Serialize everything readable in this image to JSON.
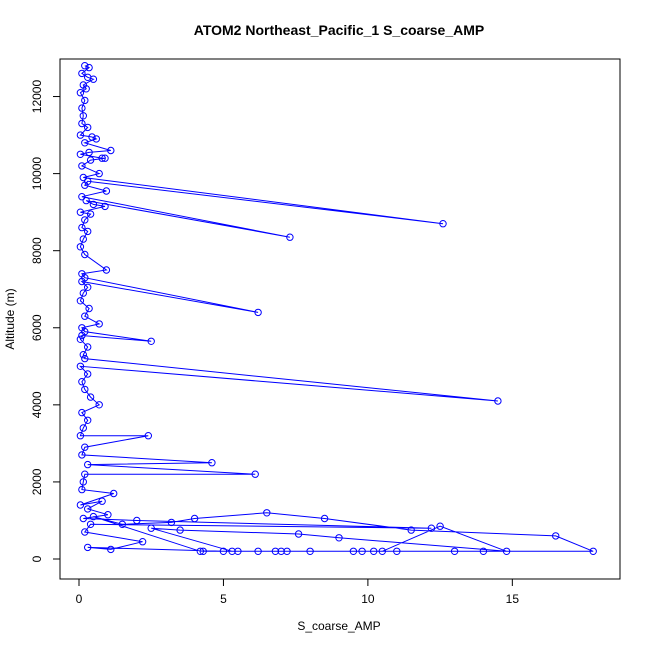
{
  "chart_data": {
    "type": "line",
    "title": "ATOM2 Northeast_Pacific_1 S_coarse_AMP",
    "xlabel": "S_coarse_AMP",
    "ylabel": "Altitude (m)",
    "xlim": [
      0,
      18
    ],
    "ylim": [
      0,
      13000
    ],
    "x_ticks": [
      0,
      5,
      10,
      15
    ],
    "y_ticks": [
      0,
      2000,
      4000,
      6000,
      8000,
      10000,
      12000
    ],
    "grid": false,
    "markers": "open-circle",
    "color": "#0000ff",
    "series": [
      {
        "points": [
          [
            0.2,
            12800
          ],
          [
            0.35,
            12750
          ],
          [
            0.1,
            12600
          ],
          [
            0.3,
            12500
          ],
          [
            0.5,
            12450
          ],
          [
            0.15,
            12300
          ],
          [
            0.25,
            12200
          ],
          [
            0.05,
            12100
          ],
          [
            0.2,
            11900
          ],
          [
            0.1,
            11700
          ],
          [
            0.15,
            11500
          ],
          [
            0.1,
            11300
          ],
          [
            0.3,
            11200
          ],
          [
            0.05,
            11000
          ],
          [
            0.45,
            10950
          ],
          [
            0.6,
            10900
          ],
          [
            0.2,
            10800
          ],
          [
            1.1,
            10600
          ],
          [
            0.35,
            10550
          ],
          [
            0.05,
            10500
          ],
          [
            0.8,
            10400
          ],
          [
            0.9,
            10400
          ],
          [
            0.4,
            10350
          ],
          [
            0.1,
            10200
          ],
          [
            0.7,
            10000
          ],
          [
            0.15,
            9900
          ],
          [
            12.6,
            8700
          ],
          [
            0.3,
            9800
          ],
          [
            0.2,
            9700
          ],
          [
            0.95,
            9550
          ],
          [
            0.1,
            9400
          ],
          [
            7.3,
            8350
          ],
          [
            0.25,
            9300
          ],
          [
            0.5,
            9200
          ],
          [
            0.9,
            9150
          ],
          [
            0.05,
            9000
          ],
          [
            0.4,
            8950
          ],
          [
            0.2,
            8800
          ],
          [
            0.1,
            8600
          ],
          [
            0.3,
            8500
          ],
          [
            0.15,
            8300
          ],
          [
            0.05,
            8100
          ],
          [
            0.2,
            7900
          ],
          [
            0.95,
            7500
          ],
          [
            0.1,
            7400
          ],
          [
            0.2,
            7300
          ],
          [
            6.2,
            6400
          ],
          [
            0.1,
            7200
          ],
          [
            0.3,
            7050
          ],
          [
            0.15,
            6900
          ],
          [
            0.05,
            6700
          ],
          [
            0.35,
            6500
          ],
          [
            0.2,
            6300
          ],
          [
            0.7,
            6100
          ],
          [
            0.1,
            6000
          ],
          [
            0.2,
            5900
          ],
          [
            2.5,
            5650
          ],
          [
            0.1,
            5800
          ],
          [
            0.05,
            5700
          ],
          [
            0.3,
            5500
          ],
          [
            0.15,
            5300
          ],
          [
            0.2,
            5200
          ],
          [
            14.5,
            4100
          ],
          [
            0.05,
            5000
          ],
          [
            0.3,
            4800
          ],
          [
            0.1,
            4600
          ],
          [
            0.2,
            4400
          ],
          [
            0.4,
            4200
          ],
          [
            0.7,
            4000
          ],
          [
            0.1,
            3800
          ],
          [
            0.3,
            3600
          ],
          [
            0.15,
            3400
          ],
          [
            0.05,
            3200
          ],
          [
            2.4,
            3200
          ],
          [
            0.2,
            2900
          ],
          [
            0.1,
            2700
          ],
          [
            4.6,
            2500
          ],
          [
            0.3,
            2450
          ],
          [
            6.1,
            2200
          ],
          [
            0.2,
            2200
          ],
          [
            0.15,
            2000
          ],
          [
            0.1,
            1800
          ],
          [
            1.2,
            1700
          ],
          [
            0.05,
            1400
          ],
          [
            0.8,
            1500
          ],
          [
            0.3,
            1300
          ],
          [
            1.0,
            1150
          ],
          [
            0.15,
            1050
          ],
          [
            2.0,
            1000
          ],
          [
            12.2,
            800
          ],
          [
            0.4,
            900
          ],
          [
            0.2,
            700
          ],
          [
            2.2,
            450
          ],
          [
            1.1,
            250
          ],
          [
            0.3,
            300
          ],
          [
            5.0,
            200
          ],
          [
            7.0,
            200
          ],
          [
            9.5,
            200
          ],
          [
            11.0,
            200
          ],
          [
            13.0,
            200
          ],
          [
            14.0,
            200
          ],
          [
            17.8,
            200
          ],
          [
            16.5,
            600
          ],
          [
            11.5,
            750
          ],
          [
            8.5,
            1050
          ],
          [
            6.5,
            1200
          ],
          [
            4.0,
            1050
          ],
          [
            3.2,
            950
          ],
          [
            1.5,
            900
          ],
          [
            0.5,
            1100
          ],
          [
            4.2,
            200
          ],
          [
            5.5,
            200
          ],
          [
            6.8,
            200
          ],
          [
            8.0,
            200
          ],
          [
            9.8,
            200
          ],
          [
            10.5,
            200
          ],
          [
            12.5,
            850
          ],
          [
            14.8,
            200
          ],
          [
            9.0,
            550
          ],
          [
            7.6,
            650
          ],
          [
            3.5,
            750
          ],
          [
            2.5,
            800
          ],
          [
            5.3,
            200
          ],
          [
            6.2,
            200
          ],
          [
            7.2,
            200
          ],
          [
            10.2,
            200
          ],
          [
            4.3,
            200
          ]
        ]
      }
    ]
  }
}
